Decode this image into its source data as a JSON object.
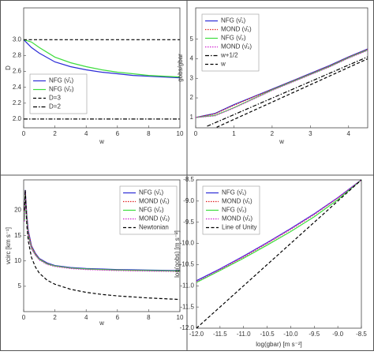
{
  "chart_data": [
    {
      "type": "line",
      "xlabel": "w",
      "ylabel": "D",
      "legend": "lower left",
      "xlim": [
        0,
        10
      ],
      "xticks": [
        0,
        2,
        4,
        6,
        8,
        10
      ],
      "ylim": [
        1.89,
        3.4
      ],
      "yticks": [
        {
          "value": 2,
          "label": "2.0"
        },
        {
          "value": 2.2,
          "label": "2.2"
        },
        {
          "value": 2.4,
          "label": "2.4"
        },
        {
          "value": 2.6,
          "label": "2.6"
        },
        {
          "value": 2.8,
          "label": "2.8"
        },
        {
          "value": 3,
          "label": "3.0"
        }
      ],
      "series": [
        {
          "name": "NFG (ν̂₁)",
          "color": "#2b2bd6",
          "dash": "solid",
          "x": [
            0,
            0.5,
            1,
            2,
            3,
            4,
            5,
            6,
            7,
            8,
            10
          ],
          "values": [
            3.0,
            2.9,
            2.83,
            2.72,
            2.66,
            2.62,
            2.59,
            2.57,
            2.55,
            2.54,
            2.52
          ]
        },
        {
          "name": "NFG (ν̂₂)",
          "color": "#3ddc3d",
          "dash": "solid",
          "x": [
            0,
            0.5,
            1,
            2,
            3,
            4,
            5,
            6,
            7,
            8,
            10
          ],
          "values": [
            3.0,
            2.97,
            2.9,
            2.78,
            2.71,
            2.66,
            2.62,
            2.59,
            2.57,
            2.55,
            2.53
          ]
        },
        {
          "name": "D=3",
          "color": "#000000",
          "dash": "dashed",
          "x": [
            0,
            10
          ],
          "values": [
            3,
            3
          ]
        },
        {
          "name": "D=2",
          "color": "#000000",
          "dash": "dashdot",
          "x": [
            0,
            10
          ],
          "values": [
            2,
            2
          ]
        }
      ]
    },
    {
      "type": "line",
      "xlabel": "w",
      "ylabel": "gobs/gbar",
      "legend": "upper left",
      "xlim": [
        0,
        4.5
      ],
      "xticks": [
        0,
        1,
        2,
        3,
        4
      ],
      "ylim": [
        0.47,
        6.6
      ],
      "yticks": [
        1,
        2,
        3,
        4,
        5
      ],
      "series": [
        {
          "name": "NFG (ν̂₁)",
          "color": "#2b2bd6",
          "dash": "solid",
          "x": [
            0,
            0.5,
            1,
            1.5,
            2,
            2.5,
            3,
            3.5,
            4,
            4.5
          ],
          "values": [
            1.0,
            1.2,
            1.65,
            2.05,
            2.45,
            2.85,
            3.25,
            3.65,
            4.1,
            4.5
          ]
        },
        {
          "name": "MOND (ν̂₁)",
          "color": "#e02020",
          "dash": "dotted",
          "x": [
            0,
            0.5,
            1,
            1.5,
            2,
            2.5,
            3,
            3.5,
            4,
            4.5
          ],
          "values": [
            1.0,
            1.18,
            1.62,
            2.03,
            2.43,
            2.83,
            3.23,
            3.63,
            4.08,
            4.48
          ]
        },
        {
          "name": "NFG (ν̂₂)",
          "color": "#3ddc3d",
          "dash": "solid",
          "x": [
            0,
            0.5,
            1,
            1.5,
            2,
            2.5,
            3,
            3.5,
            4,
            4.5
          ],
          "values": [
            1.0,
            1.1,
            1.5,
            1.95,
            2.4,
            2.8,
            3.2,
            3.6,
            4.05,
            4.45
          ]
        },
        {
          "name": "MOND (ν̂₂)",
          "color": "#d020d0",
          "dash": "dotted",
          "x": [
            0,
            0.5,
            1,
            1.5,
            2,
            2.5,
            3,
            3.5,
            4,
            4.5
          ],
          "values": [
            1.0,
            1.08,
            1.48,
            1.93,
            2.38,
            2.78,
            3.18,
            3.58,
            4.03,
            4.43
          ]
        },
        {
          "name": "w+1/2",
          "color": "#000000",
          "dash": "dashdot",
          "x": [
            0.3,
            4.5
          ],
          "values": [
            0.55,
            4.1
          ]
        },
        {
          "name": "w",
          "color": "#000000",
          "dash": "dashed",
          "x": [
            0.55,
            4.5
          ],
          "values": [
            0.5,
            4.0
          ]
        }
      ]
    },
    {
      "type": "line",
      "xlabel": "w",
      "ylabel": "vcirc [km s⁻¹]",
      "legend": "upper right",
      "xlim": [
        0,
        10
      ],
      "xticks": [
        0,
        2,
        4,
        6,
        8,
        10
      ],
      "ylim": [
        0,
        26
      ],
      "yticks": [
        5,
        10,
        15,
        20
      ],
      "series": [
        {
          "name": "NFG (ν̂₁)",
          "color": "#2b2bd6",
          "dash": "solid",
          "x": [
            0.05,
            0.1,
            0.2,
            0.3,
            0.5,
            0.75,
            1,
            1.5,
            2,
            3,
            4,
            5,
            6,
            7,
            8,
            10
          ],
          "values": [
            20,
            24,
            19,
            16,
            13,
            11.5,
            10.5,
            9.6,
            9.1,
            8.7,
            8.5,
            8.4,
            8.3,
            8.25,
            8.2,
            8.1
          ]
        },
        {
          "name": "MOND (ν̂₁)",
          "color": "#e02020",
          "dash": "dotted",
          "x": [
            0.05,
            0.1,
            0.2,
            0.3,
            0.5,
            0.75,
            1,
            1.5,
            2,
            3,
            4,
            5,
            6,
            7,
            8,
            10
          ],
          "values": [
            19.8,
            23.8,
            18.8,
            15.8,
            12.9,
            11.4,
            10.4,
            9.5,
            9.0,
            8.6,
            8.4,
            8.3,
            8.2,
            8.15,
            8.1,
            8.0
          ]
        },
        {
          "name": "NFG (ν̂₂)",
          "color": "#3ddc3d",
          "dash": "solid",
          "x": [
            0.05,
            0.1,
            0.2,
            0.3,
            0.5,
            0.75,
            1,
            1.5,
            2,
            3,
            4,
            5,
            6,
            7,
            8,
            10
          ],
          "values": [
            18,
            23,
            18,
            15,
            12.5,
            11.2,
            10.3,
            9.4,
            9,
            8.6,
            8.4,
            8.3,
            8.2,
            8.15,
            8.1,
            8.0
          ]
        },
        {
          "name": "MOND (ν̂₂)",
          "color": "#d020d0",
          "dash": "dotted",
          "x": [
            0.05,
            0.1,
            0.2,
            0.3,
            0.5,
            0.75,
            1,
            1.5,
            2,
            3,
            4,
            5,
            6,
            7,
            8,
            10
          ],
          "values": [
            17.8,
            22.8,
            17.8,
            14.8,
            12.4,
            11.1,
            10.2,
            9.3,
            8.9,
            8.5,
            8.3,
            8.2,
            8.1,
            8.05,
            8.0,
            7.9
          ]
        },
        {
          "name": "Newtonian",
          "color": "#000000",
          "dash": "dashed",
          "x": [
            0.05,
            0.1,
            0.2,
            0.3,
            0.5,
            0.75,
            1,
            1.5,
            2,
            3,
            4,
            5,
            6,
            7,
            8,
            10
          ],
          "values": [
            20,
            24,
            17,
            13.9,
            10.7,
            8.8,
            7.6,
            6.2,
            5.4,
            4.4,
            3.8,
            3.4,
            3.1,
            2.9,
            2.7,
            2.4
          ]
        }
      ]
    },
    {
      "type": "line",
      "xlabel": "log(gbar) [m s⁻²]",
      "ylabel": "log(gobs) [m s⁻²]",
      "legend": "upper left",
      "xlim": [
        -12,
        -8.5
      ],
      "xticks": [
        {
          "value": -12,
          "label": "-12.0"
        },
        -11.5,
        {
          "value": -11,
          "label": "-11.0"
        },
        -10.5,
        {
          "value": -10,
          "label": "-10.0"
        },
        -9.5,
        {
          "value": -9,
          "label": "-9.0"
        },
        -8.5
      ],
      "ylim": [
        -12,
        -8.5
      ],
      "yticks": [
        {
          "value": -12,
          "label": "-12.0"
        },
        -11.5,
        {
          "value": -11,
          "label": "-11.0"
        },
        -10.5,
        {
          "value": -10,
          "label": "-10.0"
        },
        -9.5,
        {
          "value": -9,
          "label": "-9.0"
        },
        -8.5
      ],
      "series": [
        {
          "name": "NFG (ν̂₁)",
          "color": "#2b2bd6",
          "dash": "solid",
          "x": [
            -12,
            -11.5,
            -11,
            -10.5,
            -10,
            -9.5,
            -9,
            -8.5
          ],
          "values": [
            -10.88,
            -10.6,
            -10.3,
            -9.98,
            -9.65,
            -9.3,
            -8.92,
            -8.5
          ]
        },
        {
          "name": "MOND (ν̂₁)",
          "color": "#e02020",
          "dash": "dotted",
          "x": [
            -12,
            -11.5,
            -11,
            -10.5,
            -10,
            -9.5,
            -9,
            -8.5
          ],
          "values": [
            -10.9,
            -10.62,
            -10.32,
            -10.0,
            -9.67,
            -9.32,
            -8.93,
            -8.5
          ]
        },
        {
          "name": "NFG (ν̂₂)",
          "color": "#3ddc3d",
          "dash": "solid",
          "x": [
            -12,
            -11.5,
            -11,
            -10.5,
            -10,
            -9.5,
            -9,
            -8.5
          ],
          "values": [
            -10.92,
            -10.64,
            -10.35,
            -10.04,
            -9.72,
            -9.37,
            -8.97,
            -8.5
          ]
        },
        {
          "name": "MOND (ν̂₂)",
          "color": "#d020d0",
          "dash": "dotted",
          "x": [
            -12,
            -11.5,
            -11,
            -10.5,
            -10,
            -9.5,
            -9,
            -8.5
          ],
          "values": [
            -10.9,
            -10.61,
            -10.31,
            -9.99,
            -9.66,
            -9.31,
            -8.92,
            -8.5
          ]
        },
        {
          "name": "Line of Unity",
          "color": "#000000",
          "dash": "dashed",
          "x": [
            -12,
            -8.5
          ],
          "values": [
            -12,
            -8.5
          ]
        }
      ]
    }
  ]
}
